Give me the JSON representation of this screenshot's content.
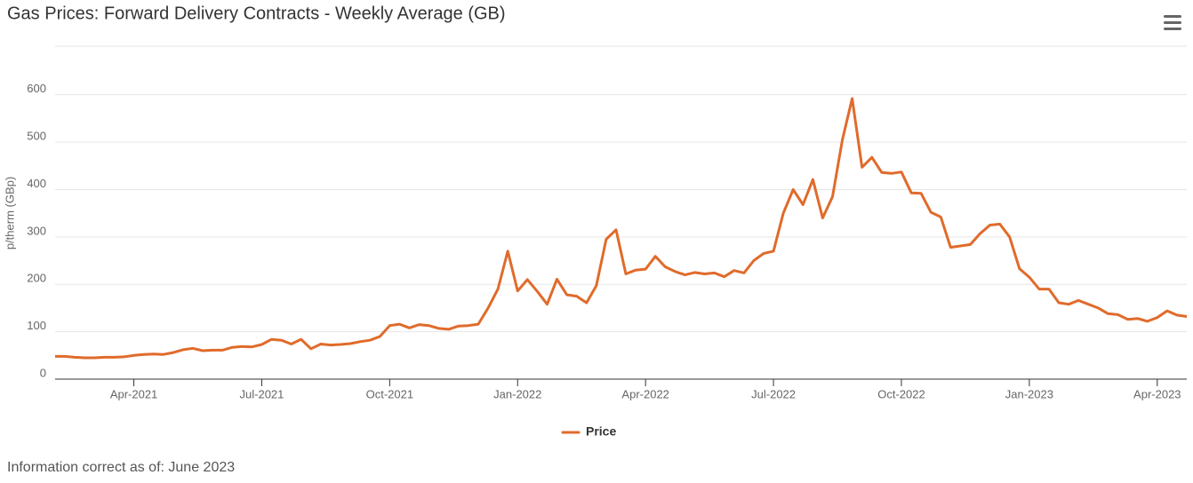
{
  "chart_data": {
    "type": "line",
    "title": "Gas Prices: Forward Delivery Contracts - Weekly Average (GB)",
    "y_label": "p/therm (GBp)",
    "footnote": "Information correct as of: June 2023",
    "categories": [
      null,
      null,
      null,
      null,
      null,
      null,
      null,
      null,
      "Apr-2021",
      null,
      null,
      null,
      null,
      null,
      null,
      null,
      null,
      null,
      null,
      null,
      null,
      "Jul-2021",
      null,
      null,
      null,
      null,
      null,
      null,
      null,
      null,
      null,
      null,
      null,
      null,
      "Oct-2021",
      null,
      null,
      null,
      null,
      null,
      null,
      null,
      null,
      null,
      null,
      null,
      null,
      "Jan-2022",
      null,
      null,
      null,
      null,
      null,
      null,
      null,
      null,
      null,
      null,
      null,
      null,
      "Apr-2022",
      null,
      null,
      null,
      null,
      null,
      null,
      null,
      null,
      null,
      null,
      null,
      null,
      "Jul-2022",
      null,
      null,
      null,
      null,
      null,
      null,
      null,
      null,
      null,
      null,
      null,
      null,
      "Oct-2022",
      null,
      null,
      null,
      null,
      null,
      null,
      null,
      null,
      null,
      null,
      null,
      null,
      "Jan-2023",
      null,
      null,
      null,
      null,
      null,
      null,
      null,
      null,
      null,
      null,
      null,
      null,
      "Apr-2023",
      null,
      null,
      null
    ],
    "series": [
      {
        "name": "Price",
        "color": "#e06b2b",
        "values": [
          48,
          48,
          46,
          45,
          45,
          46,
          46,
          47,
          50,
          52,
          53,
          52,
          56,
          62,
          65,
          60,
          61,
          61,
          67,
          69,
          68,
          73,
          84,
          82,
          74,
          84,
          64,
          74,
          72,
          73,
          75,
          79,
          82,
          90,
          113,
          116,
          108,
          115,
          113,
          107,
          105,
          112,
          113,
          116,
          150,
          190,
          270,
          186,
          210,
          185,
          158,
          211,
          178,
          175,
          161,
          197,
          295,
          315,
          222,
          230,
          232,
          259,
          237,
          227,
          220,
          225,
          222,
          224,
          216,
          229,
          224,
          250,
          265,
          270,
          350,
          400,
          368,
          421,
          340,
          385,
          505,
          592,
          447,
          468,
          436,
          434,
          437,
          393,
          392,
          352,
          342,
          278,
          281,
          284,
          307,
          325,
          327,
          300,
          233,
          215,
          190,
          190,
          161,
          158,
          166,
          158,
          150,
          138,
          136,
          126,
          128,
          122,
          130,
          144,
          135,
          132
        ]
      }
    ],
    "ylim": [
      0,
      700
    ],
    "yticks": [
      0,
      100,
      200,
      300,
      400,
      500,
      600
    ],
    "grid": true
  }
}
